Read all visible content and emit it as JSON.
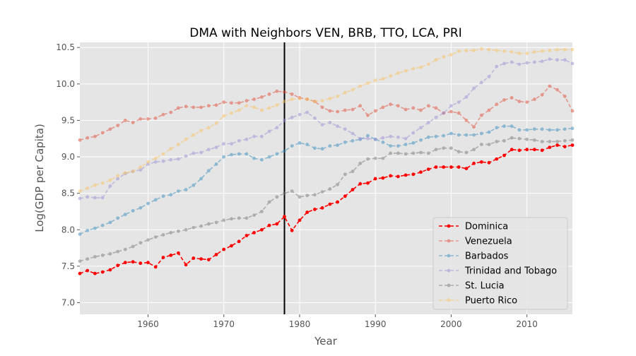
{
  "chart_data": {
    "type": "line",
    "title": "DMA with Neighbors VEN, BRB, TTO, LCA, PRI",
    "xlabel": "Year",
    "ylabel": "Log(GDP per Capita)",
    "xlim": [
      1951,
      2016
    ],
    "ylim": [
      6.84,
      10.57
    ],
    "xticks": [
      1960,
      1970,
      1980,
      1990,
      2000,
      2010
    ],
    "yticks": [
      7.0,
      7.5,
      8.0,
      8.5,
      9.0,
      9.5,
      10.0,
      10.5
    ],
    "grid": true,
    "legend_position": "bottom-right",
    "vertical_line": {
      "x": 1978,
      "color": "#000000"
    },
    "x": [
      1951,
      1952,
      1953,
      1954,
      1955,
      1956,
      1957,
      1958,
      1959,
      1960,
      1961,
      1962,
      1963,
      1964,
      1965,
      1966,
      1967,
      1968,
      1969,
      1970,
      1971,
      1972,
      1973,
      1974,
      1975,
      1976,
      1977,
      1978,
      1979,
      1980,
      1981,
      1982,
      1983,
      1984,
      1985,
      1986,
      1987,
      1988,
      1989,
      1990,
      1991,
      1992,
      1993,
      1994,
      1995,
      1996,
      1997,
      1998,
      1999,
      2000,
      2001,
      2002,
      2003,
      2004,
      2005,
      2006,
      2007,
      2008,
      2009,
      2010,
      2011,
      2012,
      2013,
      2014,
      2015,
      2016
    ],
    "series": [
      {
        "name": "Dominica",
        "color": "#ff0000",
        "alpha": 1.0,
        "values": [
          7.4,
          7.44,
          7.4,
          7.42,
          7.45,
          7.51,
          7.55,
          7.56,
          7.54,
          7.55,
          7.49,
          7.62,
          7.65,
          7.68,
          7.52,
          7.61,
          7.6,
          7.59,
          7.66,
          7.73,
          7.78,
          7.84,
          7.92,
          7.96,
          8.0,
          8.06,
          8.08,
          8.18,
          7.99,
          8.13,
          8.24,
          8.28,
          8.3,
          8.35,
          8.38,
          8.46,
          8.55,
          8.63,
          8.64,
          8.7,
          8.71,
          8.74,
          8.73,
          8.75,
          8.76,
          8.79,
          8.83,
          8.86,
          8.86,
          8.86,
          8.86,
          8.84,
          8.91,
          8.93,
          8.92,
          8.97,
          9.02,
          9.1,
          9.09,
          9.1,
          9.1,
          9.09,
          9.13,
          9.16,
          9.14,
          9.16
        ]
      },
      {
        "name": "Venezuela",
        "color": "#e24a33",
        "alpha": 0.5,
        "values": [
          9.23,
          9.26,
          9.28,
          9.33,
          9.38,
          9.43,
          9.5,
          9.47,
          9.52,
          9.52,
          9.53,
          9.58,
          9.61,
          9.67,
          9.69,
          9.68,
          9.68,
          9.7,
          9.71,
          9.75,
          9.74,
          9.74,
          9.77,
          9.79,
          9.82,
          9.86,
          9.9,
          9.89,
          9.86,
          9.81,
          9.79,
          9.76,
          9.68,
          9.63,
          9.62,
          9.64,
          9.65,
          9.7,
          9.57,
          9.63,
          9.68,
          9.72,
          9.7,
          9.65,
          9.67,
          9.64,
          9.7,
          9.67,
          9.6,
          9.62,
          9.6,
          9.5,
          9.41,
          9.57,
          9.64,
          9.72,
          9.78,
          9.81,
          9.76,
          9.75,
          9.79,
          9.85,
          9.97,
          9.92,
          9.83,
          9.63
        ]
      },
      {
        "name": "Barbados",
        "color": "#348abd",
        "alpha": 0.5,
        "values": [
          7.94,
          7.99,
          8.02,
          8.06,
          8.1,
          8.16,
          8.21,
          8.26,
          8.3,
          8.36,
          8.41,
          8.46,
          8.48,
          8.53,
          8.55,
          8.61,
          8.7,
          8.81,
          8.9,
          9.0,
          9.03,
          9.04,
          9.04,
          8.98,
          8.96,
          9.0,
          9.04,
          9.08,
          9.15,
          9.19,
          9.17,
          9.12,
          9.11,
          9.15,
          9.16,
          9.2,
          9.22,
          9.24,
          9.29,
          9.24,
          9.2,
          9.15,
          9.15,
          9.17,
          9.19,
          9.23,
          9.27,
          9.28,
          9.29,
          9.32,
          9.3,
          9.3,
          9.3,
          9.32,
          9.34,
          9.4,
          9.42,
          9.42,
          9.37,
          9.37,
          9.38,
          9.38,
          9.37,
          9.37,
          9.38,
          9.39
        ]
      },
      {
        "name": "Trinidad and Tobago",
        "color": "#988ed5",
        "alpha": 0.5,
        "values": [
          8.43,
          8.45,
          8.44,
          8.44,
          8.6,
          8.7,
          8.77,
          8.8,
          8.82,
          8.9,
          8.93,
          8.94,
          8.96,
          8.97,
          9.01,
          9.05,
          9.06,
          9.1,
          9.13,
          9.18,
          9.18,
          9.22,
          9.24,
          9.28,
          9.28,
          9.35,
          9.4,
          9.5,
          9.54,
          9.58,
          9.61,
          9.53,
          9.44,
          9.47,
          9.42,
          9.38,
          9.32,
          9.25,
          9.25,
          9.24,
          9.26,
          9.28,
          9.27,
          9.25,
          9.33,
          9.4,
          9.47,
          9.54,
          9.6,
          9.7,
          9.75,
          9.82,
          9.94,
          10.02,
          10.1,
          10.24,
          10.28,
          10.3,
          10.27,
          10.29,
          10.3,
          10.31,
          10.34,
          10.33,
          10.33,
          10.28
        ]
      },
      {
        "name": "St. Lucia",
        "color": "#777777",
        "alpha": 0.5,
        "values": [
          7.57,
          7.6,
          7.63,
          7.65,
          7.67,
          7.7,
          7.73,
          7.77,
          7.82,
          7.86,
          7.9,
          7.93,
          7.96,
          7.98,
          8.0,
          8.03,
          8.05,
          8.08,
          8.1,
          8.13,
          8.15,
          8.16,
          8.16,
          8.2,
          8.25,
          8.38,
          8.45,
          8.5,
          8.53,
          8.45,
          8.47,
          8.48,
          8.52,
          8.56,
          8.62,
          8.76,
          8.8,
          8.91,
          8.97,
          8.98,
          8.98,
          9.05,
          9.05,
          9.04,
          9.05,
          9.06,
          9.05,
          9.1,
          9.12,
          9.12,
          9.07,
          9.06,
          9.1,
          9.17,
          9.17,
          9.21,
          9.22,
          9.26,
          9.25,
          9.24,
          9.23,
          9.21,
          9.21,
          9.21,
          9.22,
          9.23
        ]
      },
      {
        "name": "Puerto Rico",
        "color": "#fbc15e",
        "alpha": 0.5,
        "values": [
          8.53,
          8.57,
          8.61,
          8.64,
          8.68,
          8.74,
          8.78,
          8.8,
          8.86,
          8.93,
          8.98,
          9.04,
          9.11,
          9.17,
          9.24,
          9.3,
          9.36,
          9.4,
          9.46,
          9.56,
          9.6,
          9.64,
          9.7,
          9.68,
          9.64,
          9.67,
          9.71,
          9.76,
          9.79,
          9.8,
          9.79,
          9.76,
          9.77,
          9.8,
          9.83,
          9.88,
          9.92,
          9.97,
          10.01,
          10.05,
          10.07,
          10.11,
          10.15,
          10.18,
          10.21,
          10.23,
          10.27,
          10.33,
          10.37,
          10.4,
          10.45,
          10.46,
          10.46,
          10.48,
          10.47,
          10.46,
          10.45,
          10.44,
          10.42,
          10.42,
          10.44,
          10.45,
          10.46,
          10.47,
          10.47,
          10.47
        ]
      }
    ]
  }
}
